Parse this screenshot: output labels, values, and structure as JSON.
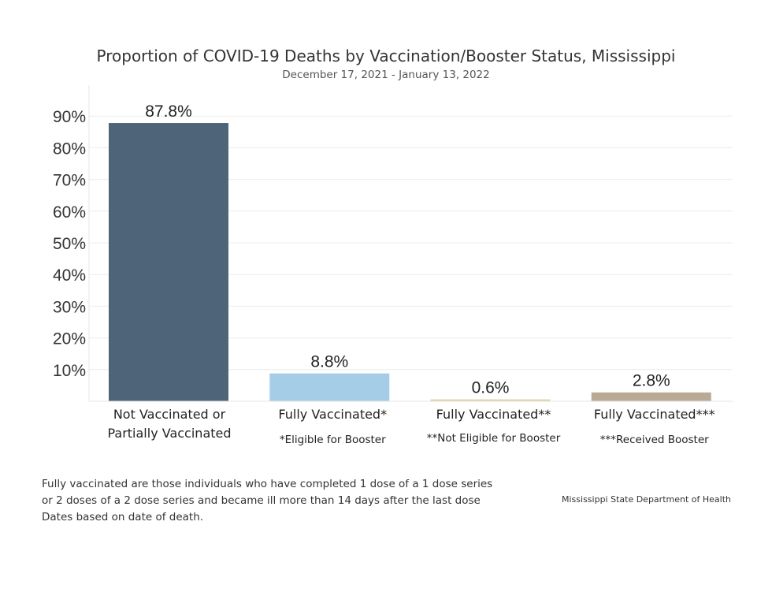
{
  "chart_data": {
    "type": "bar",
    "title": "Proportion of COVID-19 Deaths by Vaccination/Booster Status, Mississippi",
    "subtitle": "December 17, 2021 - January 13, 2022",
    "ylim": [
      0,
      90
    ],
    "yticks": [
      10,
      20,
      30,
      40,
      50,
      60,
      70,
      80,
      90
    ],
    "ytick_labels": [
      "10%",
      "20%",
      "30%",
      "40%",
      "50%",
      "60%",
      "70%",
      "80%",
      "90%"
    ],
    "grid": true,
    "categories": [
      {
        "label": [
          "Not Vaccinated or",
          "Partially Vaccinated"
        ],
        "sublabel": ""
      },
      {
        "label": [
          "Fully Vaccinated*"
        ],
        "sublabel": "*Eligible for Booster"
      },
      {
        "label": [
          "Fully Vaccinated**"
        ],
        "sublabel": "**Not Eligible for Booster"
      },
      {
        "label": [
          "Fully Vaccinated***"
        ],
        "sublabel": "***Received Booster"
      }
    ],
    "values": [
      87.8,
      8.8,
      0.6,
      2.8
    ],
    "value_labels": [
      "87.8%",
      "8.8%",
      "0.6%",
      "2.8%"
    ],
    "colors": [
      "#4e6479",
      "#a6cde8",
      "#ddd3a3",
      "#b9aa96"
    ]
  },
  "footnote": {
    "lines": [
      "Fully vaccinated are those individuals who have completed 1 dose of a 1 dose series",
      "or 2 doses of a 2 dose series and became ill more than 14 days after the last dose",
      "Dates based on date of death."
    ]
  },
  "source": "Mississippi State Department of Health"
}
